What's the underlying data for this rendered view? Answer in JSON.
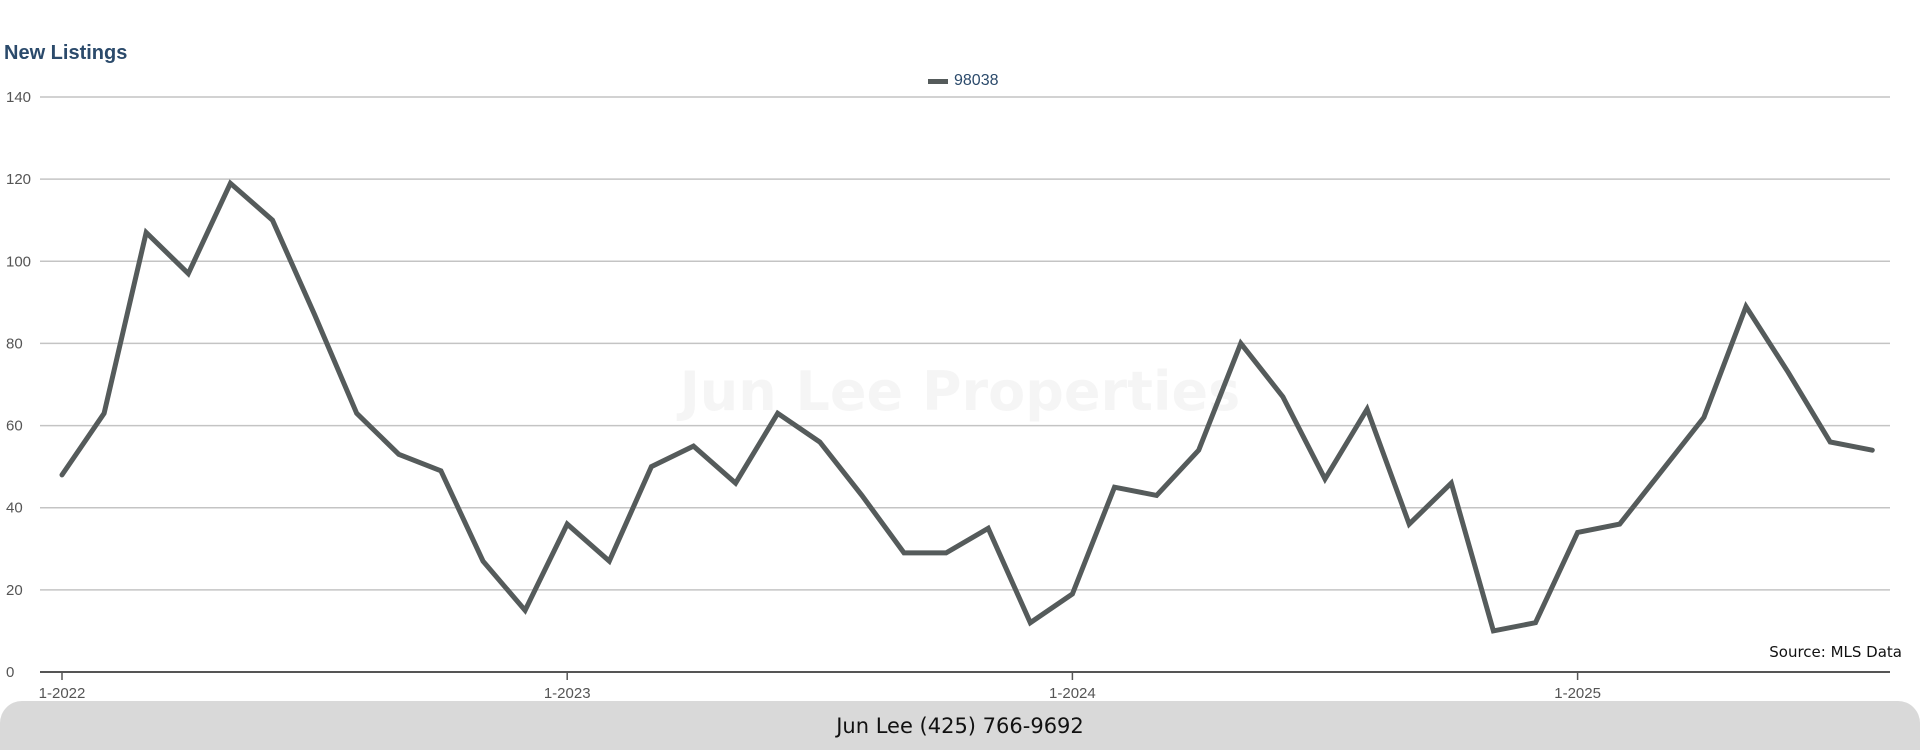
{
  "footer": {
    "contact": "Jun Lee (425) 766-9692"
  },
  "watermark": "Jun Lee Properties",
  "source": "Source: MLS Data",
  "chart_data": {
    "type": "line",
    "title": "New Listings",
    "xlabel": "",
    "ylabel": "",
    "ylim": [
      0,
      140
    ],
    "yticks": [
      0,
      20,
      40,
      60,
      80,
      100,
      120,
      140
    ],
    "xticks": [
      "1-2022",
      "1-2023",
      "1-2024",
      "1-2025"
    ],
    "grid": true,
    "legend_position": "top-center",
    "colors": {
      "line": "#555b5b",
      "grid": "#c4c4c4",
      "axis": "#555555",
      "title": "#2b4a6b"
    },
    "x": [
      "1-2022",
      "2-2022",
      "3-2022",
      "4-2022",
      "5-2022",
      "6-2022",
      "7-2022",
      "8-2022",
      "9-2022",
      "10-2022",
      "11-2022",
      "12-2022",
      "1-2023",
      "2-2023",
      "3-2023",
      "4-2023",
      "5-2023",
      "6-2023",
      "7-2023",
      "8-2023",
      "9-2023",
      "10-2023",
      "11-2023",
      "12-2023",
      "1-2024",
      "2-2024",
      "3-2024",
      "4-2024",
      "5-2024",
      "6-2024",
      "7-2024",
      "8-2024",
      "9-2024",
      "10-2024",
      "11-2024",
      "12-2024",
      "1-2025",
      "2-2025",
      "3-2025",
      "4-2025",
      "5-2025",
      "6-2025",
      "7-2025",
      "8-2025"
    ],
    "series": [
      {
        "name": "98038",
        "values": [
          48,
          63,
          107,
          97,
          119,
          110,
          87,
          63,
          53,
          49,
          27,
          15,
          36,
          27,
          50,
          55,
          46,
          63,
          56,
          43,
          29,
          29,
          35,
          12,
          19,
          45,
          43,
          54,
          80,
          67,
          47,
          64,
          36,
          46,
          10,
          12,
          34,
          36,
          49,
          62,
          89,
          73,
          56,
          54
        ]
      }
    ]
  }
}
